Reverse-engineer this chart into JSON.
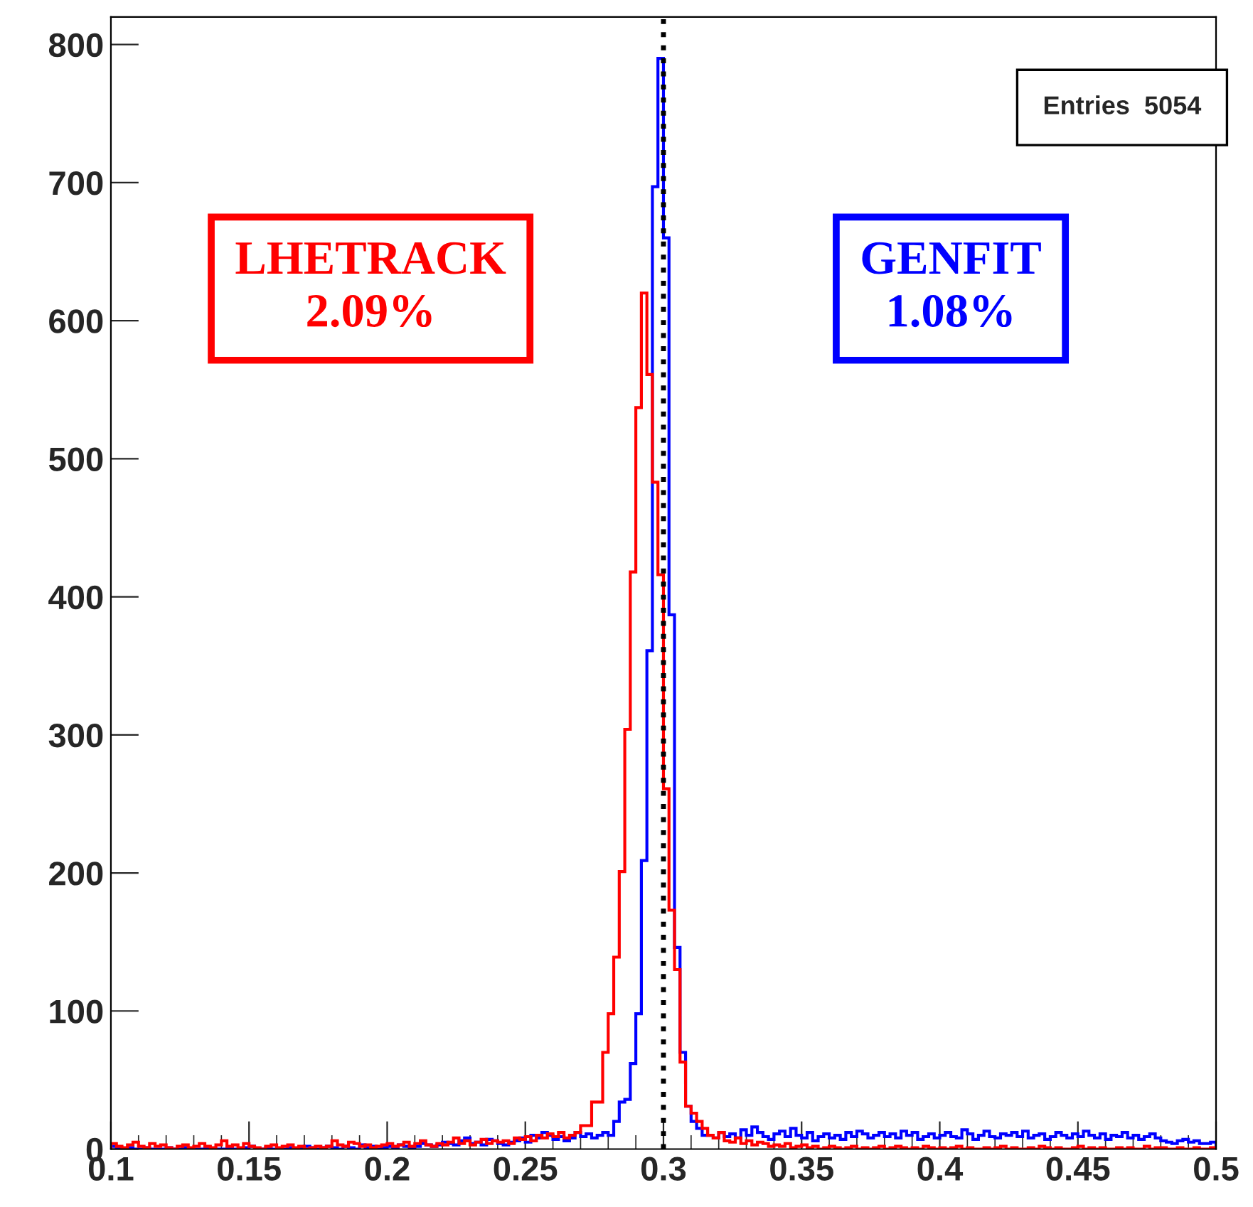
{
  "chart_data": {
    "type": "histogram",
    "bins": [
      0.1,
      0.102,
      0.104,
      0.106,
      0.108,
      0.11,
      0.112,
      0.114,
      0.116,
      0.118,
      0.12,
      0.122,
      0.124,
      0.126,
      0.128,
      0.13,
      0.132,
      0.134,
      0.136,
      0.138,
      0.14,
      0.142,
      0.144,
      0.146,
      0.148,
      0.15,
      0.152,
      0.154,
      0.156,
      0.158,
      0.16,
      0.162,
      0.164,
      0.166,
      0.168,
      0.17,
      0.172,
      0.174,
      0.176,
      0.178,
      0.18,
      0.182,
      0.184,
      0.186,
      0.188,
      0.19,
      0.192,
      0.194,
      0.196,
      0.198,
      0.2,
      0.202,
      0.204,
      0.206,
      0.208,
      0.21,
      0.212,
      0.214,
      0.216,
      0.218,
      0.22,
      0.222,
      0.224,
      0.226,
      0.228,
      0.23,
      0.232,
      0.234,
      0.236,
      0.238,
      0.24,
      0.242,
      0.244,
      0.246,
      0.248,
      0.25,
      0.252,
      0.254,
      0.256,
      0.258,
      0.26,
      0.262,
      0.264,
      0.266,
      0.268,
      0.27,
      0.272,
      0.274,
      0.276,
      0.278,
      0.28,
      0.282,
      0.284,
      0.286,
      0.288,
      0.29,
      0.292,
      0.294,
      0.296,
      0.298,
      0.3,
      0.302,
      0.304,
      0.306,
      0.308,
      0.31,
      0.312,
      0.314,
      0.316,
      0.318,
      0.32,
      0.322,
      0.324,
      0.326,
      0.328,
      0.33,
      0.332,
      0.334,
      0.336,
      0.338,
      0.34,
      0.342,
      0.344,
      0.346,
      0.348,
      0.35,
      0.352,
      0.354,
      0.356,
      0.358,
      0.36,
      0.362,
      0.364,
      0.366,
      0.368,
      0.37,
      0.372,
      0.374,
      0.376,
      0.378,
      0.38,
      0.382,
      0.384,
      0.386,
      0.388,
      0.39,
      0.392,
      0.394,
      0.396,
      0.398,
      0.4,
      0.402,
      0.404,
      0.406,
      0.408,
      0.41,
      0.412,
      0.414,
      0.416,
      0.418,
      0.42,
      0.422,
      0.424,
      0.426,
      0.428,
      0.43,
      0.432,
      0.434,
      0.436,
      0.438,
      0.44,
      0.442,
      0.444,
      0.446,
      0.448,
      0.45,
      0.452,
      0.454,
      0.456,
      0.458,
      0.46,
      0.462,
      0.464,
      0.466,
      0.468,
      0.47,
      0.472,
      0.474,
      0.476,
      0.478,
      0.48,
      0.482,
      0.484,
      0.486,
      0.488,
      0.49,
      0.492,
      0.494,
      0.496,
      0.498,
      0.5
    ],
    "series": [
      {
        "name": "GENFIT",
        "color": "#0000ff",
        "values": [
          2,
          1,
          0,
          1,
          0,
          0,
          1,
          0,
          0,
          0,
          1,
          0,
          0,
          1,
          0,
          0,
          0,
          1,
          0,
          0,
          0,
          1,
          0,
          0,
          1,
          2,
          0,
          0,
          1,
          0,
          0,
          0,
          1,
          0,
          1,
          2,
          1,
          0,
          1,
          2,
          1,
          0,
          2,
          1,
          0,
          3,
          1,
          2,
          0,
          1,
          2,
          1,
          3,
          2,
          1,
          2,
          4,
          3,
          2,
          3,
          5,
          4,
          3,
          6,
          8,
          4,
          5,
          3,
          7,
          6,
          4,
          3,
          5,
          6,
          8,
          5,
          10,
          8,
          12,
          10,
          7,
          9,
          6,
          8,
          12,
          9,
          11,
          8,
          10,
          12,
          10,
          20,
          34,
          36,
          62,
          98,
          209,
          361,
          697,
          790,
          660,
          387,
          146,
          70,
          31,
          20,
          15,
          10,
          10,
          8,
          12,
          9,
          11,
          8,
          14,
          10,
          16,
          12,
          9,
          7,
          11,
          13,
          9,
          15,
          10,
          8,
          12,
          6,
          9,
          11,
          8,
          10,
          7,
          12,
          9,
          13,
          11,
          8,
          10,
          12,
          9,
          11,
          8,
          13,
          10,
          12,
          7,
          9,
          11,
          8,
          10,
          12,
          9,
          8,
          14,
          11,
          7,
          10,
          13,
          9,
          8,
          11,
          10,
          12,
          9,
          13,
          8,
          10,
          11,
          7,
          9,
          12,
          10,
          8,
          11,
          9,
          13,
          10,
          8,
          11,
          7,
          10,
          9,
          12,
          8,
          10,
          7,
          9,
          11,
          8,
          6,
          5,
          4,
          6,
          7,
          5,
          6,
          4,
          4,
          5
        ]
      },
      {
        "name": "LHETRACK",
        "color": "#ff0000",
        "values": [
          4,
          2,
          1,
          3,
          5,
          2,
          1,
          4,
          2,
          3,
          1,
          0,
          2,
          3,
          1,
          2,
          4,
          2,
          1,
          3,
          6,
          2,
          3,
          1,
          4,
          2,
          1,
          0,
          2,
          3,
          1,
          2,
          3,
          1,
          2,
          0,
          1,
          2,
          1,
          2,
          6,
          3,
          2,
          5,
          4,
          2,
          3,
          1,
          2,
          3,
          4,
          2,
          3,
          5,
          2,
          4,
          6,
          3,
          2,
          4,
          3,
          5,
          8,
          4,
          6,
          3,
          5,
          7,
          4,
          6,
          5,
          6,
          4,
          8,
          7,
          9,
          6,
          10,
          8,
          11,
          9,
          12,
          8,
          10,
          12,
          17,
          17,
          34,
          34,
          70,
          98,
          139,
          201,
          304,
          418,
          537,
          620,
          561,
          483,
          416,
          261,
          173,
          130,
          63,
          31,
          26,
          20,
          15,
          10,
          8,
          12,
          6,
          5,
          8,
          4,
          6,
          3,
          5,
          4,
          2,
          3,
          2,
          4,
          1,
          2,
          3,
          1,
          2,
          0,
          1,
          2,
          1,
          0,
          1,
          2,
          0,
          1,
          0,
          1,
          2,
          0,
          1,
          2,
          1,
          0,
          1,
          0,
          2,
          1,
          0,
          1,
          0,
          1,
          2,
          0,
          1,
          0,
          0,
          1,
          0,
          1,
          2,
          0,
          1,
          0,
          0,
          1,
          0,
          2,
          1,
          0,
          1,
          0,
          0,
          1,
          2,
          0,
          1,
          0,
          1,
          0,
          0,
          1,
          0,
          1,
          0,
          0,
          2,
          0,
          1,
          1,
          0,
          0,
          1,
          0,
          0,
          1,
          0,
          0,
          1
        ]
      }
    ],
    "xlim": [
      0.1,
      0.5
    ],
    "ylim": [
      0,
      820
    ],
    "xticks": [
      0.1,
      0.15,
      0.2,
      0.25,
      0.3,
      0.35,
      0.4,
      0.45,
      0.5
    ],
    "yticks": [
      0,
      100,
      200,
      300,
      400,
      500,
      600,
      700,
      800
    ],
    "ref_lines": [
      {
        "axis": "x",
        "value": 0.3,
        "color": "#000000",
        "line_style": "dotted"
      }
    ],
    "annotations": [
      "Entries  5054",
      "1.08%",
      "2.09%"
    ],
    "legend": false,
    "grid": false
  }
}
